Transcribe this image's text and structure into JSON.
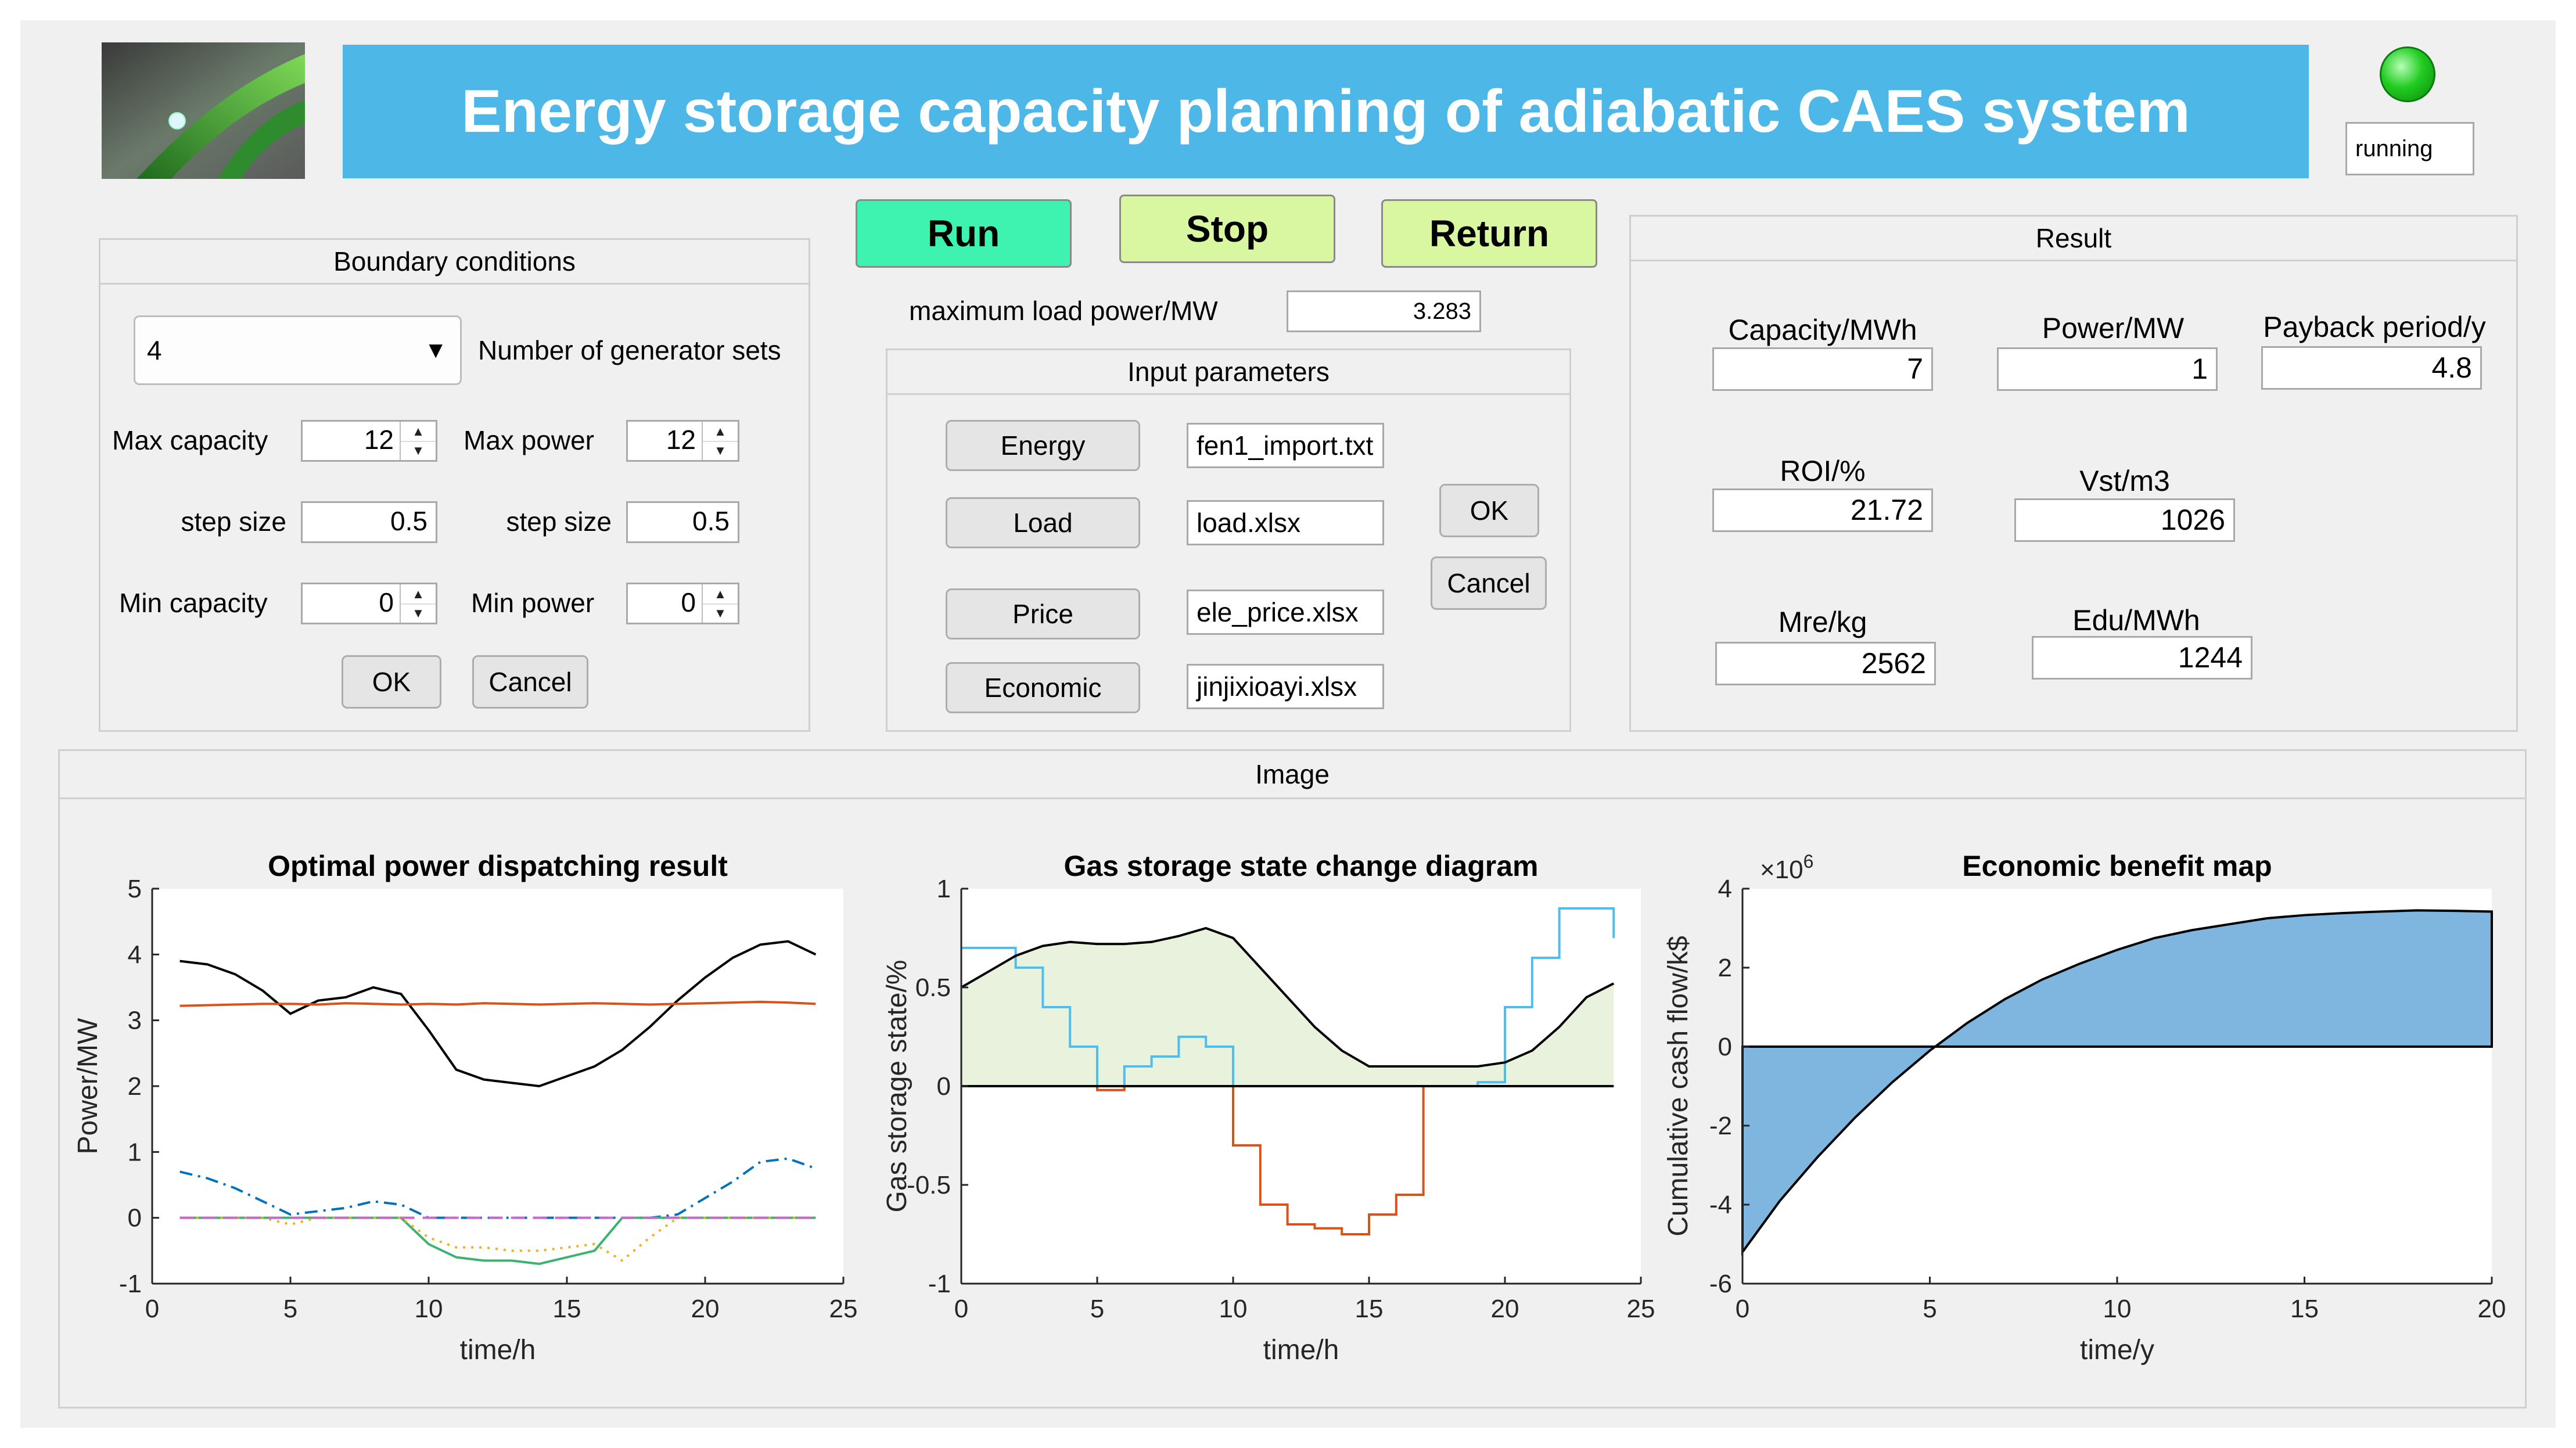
{
  "header": {
    "title": "Energy storage capacity planning of adiabatic CAES system",
    "status_text": "running",
    "banner_color": "#4db8e8",
    "status_light_color": "#22cc22"
  },
  "controls": {
    "run_label": "Run",
    "stop_label": "Stop",
    "return_label": "Return",
    "max_load_label": "maximum load power/MW",
    "max_load_value": "3.283"
  },
  "boundary": {
    "title": "Boundary conditions",
    "generator_sets_value": "4",
    "generator_sets_label": "Number of generator sets",
    "max_capacity_label": "Max capacity",
    "max_capacity_value": "12",
    "max_power_label": "Max power",
    "max_power_value": "12",
    "step_label_1": "step size",
    "step_value_1": "0.5",
    "step_label_2": "step size",
    "step_value_2": "0.5",
    "min_capacity_label": "Min capacity",
    "min_capacity_value": "0",
    "min_power_label": "Min power",
    "min_power_value": "0",
    "ok_label": "OK",
    "cancel_label": "Cancel"
  },
  "inputs": {
    "title": "Input parameters",
    "energy_label": "Energy",
    "energy_file": "fen1_import.txt",
    "load_label": "Load",
    "load_file": "load.xlsx",
    "price_label": "Price",
    "price_file": "ele_price.xlsx",
    "economic_label": "Economic",
    "economic_file": "jinjixioayi.xlsx",
    "ok_label": "OK",
    "cancel_label": "Cancel"
  },
  "result": {
    "title": "Result",
    "capacity_label": "Capacity/MWh",
    "capacity_value": "7",
    "power_label": "Power/MW",
    "power_value": "1",
    "payback_label": "Payback period/y",
    "payback_value": "4.8",
    "roi_label": "ROI/%",
    "roi_value": "21.72",
    "vst_label": "Vst/m3",
    "vst_value": "1026",
    "mre_label": "Mre/kg",
    "mre_value": "2562",
    "edu_label": "Edu/MWh",
    "edu_value": "1244"
  },
  "image_panel": {
    "title": "Image"
  },
  "chart_data": [
    {
      "type": "line",
      "title": "Optimal power dispatching result",
      "xlabel": "time/h",
      "ylabel": "Power/MW",
      "xlim": [
        0,
        25
      ],
      "ylim": [
        -1,
        5
      ],
      "xticks": [
        "0",
        "5",
        "10",
        "15",
        "20",
        "25"
      ],
      "yticks": [
        "-1",
        "0",
        "1",
        "2",
        "3",
        "4",
        "5"
      ],
      "x": [
        1,
        2,
        3,
        4,
        5,
        6,
        7,
        8,
        9,
        10,
        11,
        12,
        13,
        14,
        15,
        16,
        17,
        18,
        19,
        20,
        21,
        22,
        23,
        24
      ],
      "series": [
        {
          "color": "#000000",
          "style": "solid",
          "values": [
            3.9,
            3.85,
            3.7,
            3.45,
            3.1,
            3.3,
            3.35,
            3.5,
            3.4,
            2.85,
            2.25,
            2.1,
            2.05,
            2.0,
            2.15,
            2.3,
            2.55,
            2.9,
            3.3,
            3.65,
            3.95,
            4.15,
            4.2,
            4.0
          ]
        },
        {
          "color": "#d95319",
          "style": "solid",
          "values": [
            3.22,
            3.23,
            3.24,
            3.25,
            3.25,
            3.24,
            3.26,
            3.25,
            3.24,
            3.25,
            3.24,
            3.26,
            3.25,
            3.24,
            3.25,
            3.26,
            3.25,
            3.24,
            3.25,
            3.26,
            3.27,
            3.28,
            3.27,
            3.25
          ]
        },
        {
          "color": "#0072bd",
          "style": "dashdot",
          "values": [
            0.7,
            0.6,
            0.45,
            0.25,
            0.05,
            0.1,
            0.15,
            0.25,
            0.2,
            0,
            0,
            0,
            0,
            0,
            0,
            0,
            0,
            0,
            0.05,
            0.3,
            0.55,
            0.85,
            0.9,
            0.75
          ]
        },
        {
          "color": "#3cb371",
          "style": "solid",
          "values": [
            0,
            0,
            0,
            0,
            0,
            0,
            0,
            0,
            0,
            -0.4,
            -0.6,
            -0.65,
            -0.65,
            -0.7,
            -0.6,
            -0.5,
            0,
            0,
            0,
            0,
            0,
            0,
            0,
            0
          ]
        },
        {
          "color": "#edb120",
          "style": "dotted",
          "values": [
            0,
            0,
            0,
            0,
            -0.1,
            0,
            0,
            0,
            0,
            -0.3,
            -0.45,
            -0.45,
            -0.5,
            -0.5,
            -0.45,
            -0.4,
            -0.65,
            -0.3,
            0,
            0,
            0,
            0,
            0,
            0
          ]
        },
        {
          "color": "#cc66cc",
          "style": "dashed",
          "values": [
            0,
            0,
            0,
            0,
            0,
            0,
            0,
            0,
            0,
            0,
            0,
            0,
            0,
            0,
            0,
            0,
            0,
            0,
            0,
            0,
            0,
            0,
            0,
            0
          ]
        }
      ]
    },
    {
      "type": "area",
      "title": "Gas storage state change diagram",
      "xlabel": "time/h",
      "ylabel": "Gas storage state/%",
      "xlim": [
        0,
        25
      ],
      "ylim": [
        -1,
        1
      ],
      "xticks": [
        "0",
        "5",
        "10",
        "15",
        "20",
        "25"
      ],
      "yticks": [
        "-1",
        "-0.5",
        "0",
        "0.5",
        "1"
      ],
      "fill_color": "#e8f2dc",
      "state_x": [
        0,
        1,
        2,
        3,
        4,
        5,
        6,
        7,
        8,
        9,
        10,
        11,
        12,
        13,
        14,
        15,
        16,
        17,
        18,
        19,
        20,
        21,
        22,
        23,
        24
      ],
      "state_values": [
        0.5,
        0.58,
        0.66,
        0.71,
        0.73,
        0.72,
        0.72,
        0.73,
        0.76,
        0.8,
        0.75,
        0.6,
        0.45,
        0.3,
        0.18,
        0.1,
        0.1,
        0.1,
        0.1,
        0.1,
        0.12,
        0.18,
        0.3,
        0.45,
        0.52
      ],
      "series": [
        {
          "color": "#4dbeee",
          "style": "step",
          "x": [
            0,
            1,
            2,
            3,
            4,
            5,
            6,
            7,
            8,
            9,
            10,
            11,
            12,
            13,
            14,
            15,
            16,
            17,
            18,
            19,
            20,
            21,
            22,
            23,
            24
          ],
          "values": [
            0.7,
            0.7,
            0.6,
            0.4,
            0.2,
            0,
            0.1,
            0.15,
            0.25,
            0.2,
            0,
            0,
            0,
            0,
            0,
            0,
            0,
            0,
            0,
            0.02,
            0.4,
            0.65,
            0.9,
            0.9,
            0.75
          ]
        },
        {
          "color": "#d95319",
          "style": "step",
          "x": [
            0,
            1,
            2,
            3,
            4,
            5,
            6,
            7,
            8,
            9,
            10,
            11,
            12,
            13,
            14,
            15,
            16,
            17,
            18,
            19,
            20,
            21,
            22,
            23,
            24
          ],
          "values": [
            0,
            0,
            0,
            0,
            0,
            -0.02,
            0,
            0,
            0,
            0,
            -0.3,
            -0.6,
            -0.7,
            -0.72,
            -0.75,
            -0.65,
            -0.55,
            0,
            0,
            0,
            0,
            0,
            0,
            0,
            0
          ]
        }
      ]
    },
    {
      "type": "area",
      "title": "Economic benefit map",
      "xlabel": "time/y",
      "ylabel": "Cumulative cash flow/k$",
      "multiplier": "×10",
      "multiplier_exp": "6",
      "xlim": [
        0,
        20
      ],
      "ylim": [
        -6,
        4
      ],
      "xticks": [
        "0",
        "5",
        "10",
        "15",
        "20"
      ],
      "yticks": [
        "-6",
        "-4",
        "-2",
        "0",
        "2",
        "4"
      ],
      "fill_color": "#7eb6e0",
      "x": [
        0,
        1,
        2,
        3,
        4,
        5,
        6,
        7,
        8,
        9,
        10,
        11,
        12,
        13,
        14,
        15,
        16,
        17,
        18,
        19,
        20
      ],
      "values": [
        -5.2,
        -3.9,
        -2.8,
        -1.8,
        -0.9,
        -0.1,
        0.6,
        1.2,
        1.7,
        2.1,
        2.45,
        2.75,
        2.95,
        3.1,
        3.25,
        3.33,
        3.38,
        3.42,
        3.45,
        3.44,
        3.42
      ]
    }
  ]
}
